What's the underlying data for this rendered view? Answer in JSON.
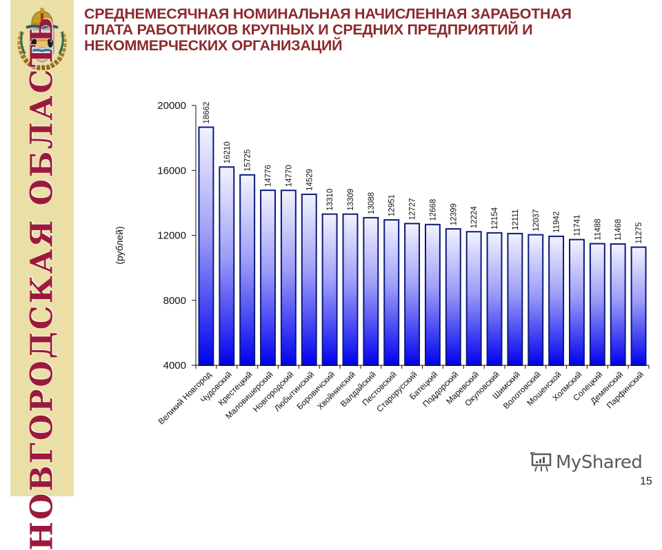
{
  "slide": {
    "title": "СРЕДНЕМЕСЯЧНАЯ НОМИНАЛЬНАЯ НАЧИСЛЕННАЯ ЗАРАБОТНАЯ ПЛАТА РАБОТНИКОВ  КРУПНЫХ И СРЕДНИХ ПРЕДПРИЯТИЙ И НЕКОММЕРЧЕСКИХ ОРГАНИЗАЦИЙ",
    "side_banner": "НОВГОРОДСКАЯ ОБЛАСТЬ",
    "crest_icon": "novgorod-coat-of-arms-icon",
    "page_number": "15",
    "watermark": "MyShared",
    "colors": {
      "title": "#8b2a2e",
      "banner_bg": "#eadfa6",
      "banner_text": "#9b1a3c",
      "bar_outline": "#0a1a7a",
      "bar_top": "#f2f2ff",
      "bar_bottom": "#0000ee"
    }
  },
  "chart_data": {
    "type": "bar",
    "title": "",
    "xlabel": "",
    "ylabel": "(рублей)",
    "ylim": [
      4000,
      20000
    ],
    "yticks": [
      4000,
      8000,
      12000,
      16000,
      20000
    ],
    "grid": false,
    "legend": null,
    "data_labels": true,
    "categories": [
      "Великий Новгород",
      "Чудовский",
      "Крестецкий",
      "Маловишерский",
      "Новгородский",
      "Любытинский",
      "Боровичский",
      "Хвойнинский",
      "Валдайский",
      "Пестовский",
      "Старорусский",
      "Батецкий",
      "Поддорский",
      "Маревский",
      "Окуловский",
      "Шимский",
      "Волотовский",
      "Мошенской",
      "Холмский",
      "Солецкий",
      "Демянский",
      "Парфинский"
    ],
    "values": [
      18662,
      16210,
      15725,
      14776,
      14770,
      14529,
      13310,
      13309,
      13088,
      12951,
      12727,
      12668,
      12399,
      12224,
      12154,
      12111,
      12037,
      11942,
      11741,
      11488,
      11468,
      11275
    ]
  }
}
